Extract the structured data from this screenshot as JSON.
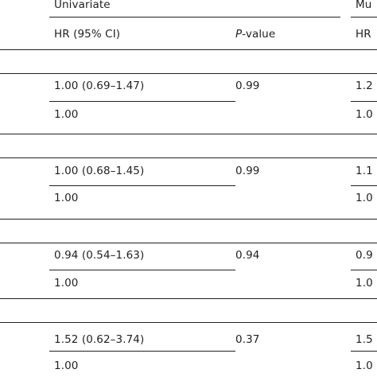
{
  "header": {
    "group_univariate": "Univariate",
    "group_multivariate": "Mu",
    "col_hr": "HR (95% CI)",
    "col_p_italic": "P",
    "col_p_rest": "-value",
    "col_hr_multi": "HR"
  },
  "rows": [
    {
      "hr": "1.00 (0.69–1.47)",
      "p": "0.99",
      "multi": "1.2"
    },
    {
      "hr": "1.00",
      "p": "",
      "multi": "1.0"
    },
    {
      "hr": "1.00 (0.68–1.45)",
      "p": "0.99",
      "multi": "1.1"
    },
    {
      "hr": "1.00",
      "p": "",
      "multi": "1.0"
    },
    {
      "hr": "0.94 (0.54–1.63)",
      "p": "0.94",
      "multi": "0.9"
    },
    {
      "hr": "1.00",
      "p": "",
      "multi": "1.0"
    },
    {
      "hr": "1.52 (0.62–3.74)",
      "p": "0.37",
      "multi": "1.5"
    },
    {
      "hr": "1.00",
      "p": "",
      "multi": "1.0"
    }
  ]
}
